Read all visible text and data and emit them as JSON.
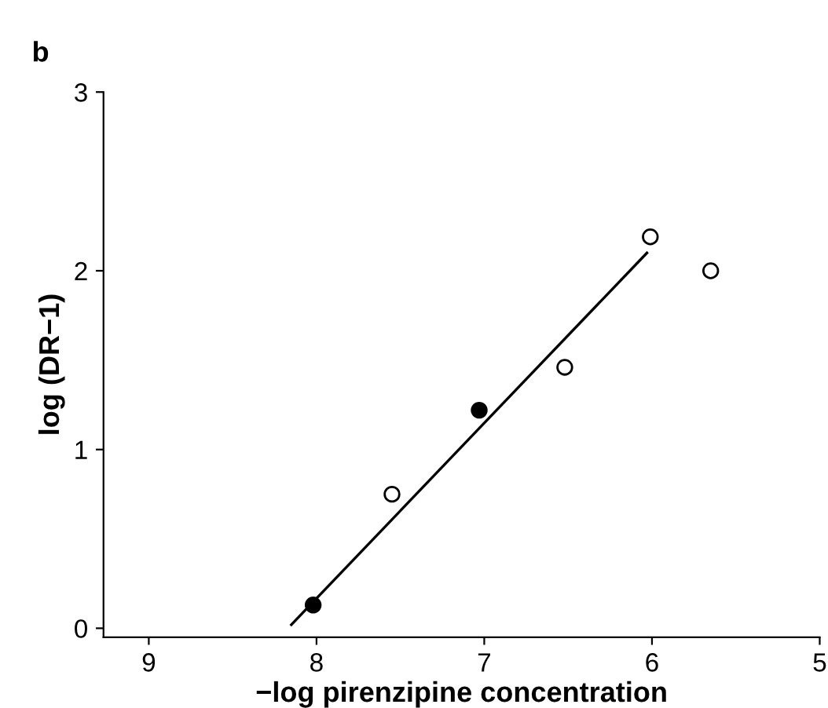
{
  "chart_data": {
    "type": "scatter",
    "title": "b",
    "xlabel": "−log pirenzipine concentration",
    "ylabel": "log (DR−1)",
    "xlim": [
      9.27,
      5
    ],
    "ylim": [
      -0.05,
      3
    ],
    "xticks": [
      9,
      8,
      7,
      6,
      5
    ],
    "yticks": [
      0,
      1,
      2,
      3
    ],
    "grid": false,
    "legend": false,
    "series": [
      {
        "marker": "circle",
        "color": "#000000",
        "x": [
          8.02,
          7.03
        ],
        "values": [
          0.13,
          1.22
        ]
      },
      {
        "marker": "circle",
        "color": "#ffffff",
        "x": [
          7.55,
          6.52,
          6.01,
          5.65
        ],
        "values": [
          0.75,
          1.46,
          2.19,
          2.0
        ]
      },
      {
        "type": "line",
        "marker": "none",
        "color": "#000000",
        "x": [
          8.15,
          6.03
        ],
        "values": [
          0.02,
          2.1
        ]
      }
    ]
  }
}
